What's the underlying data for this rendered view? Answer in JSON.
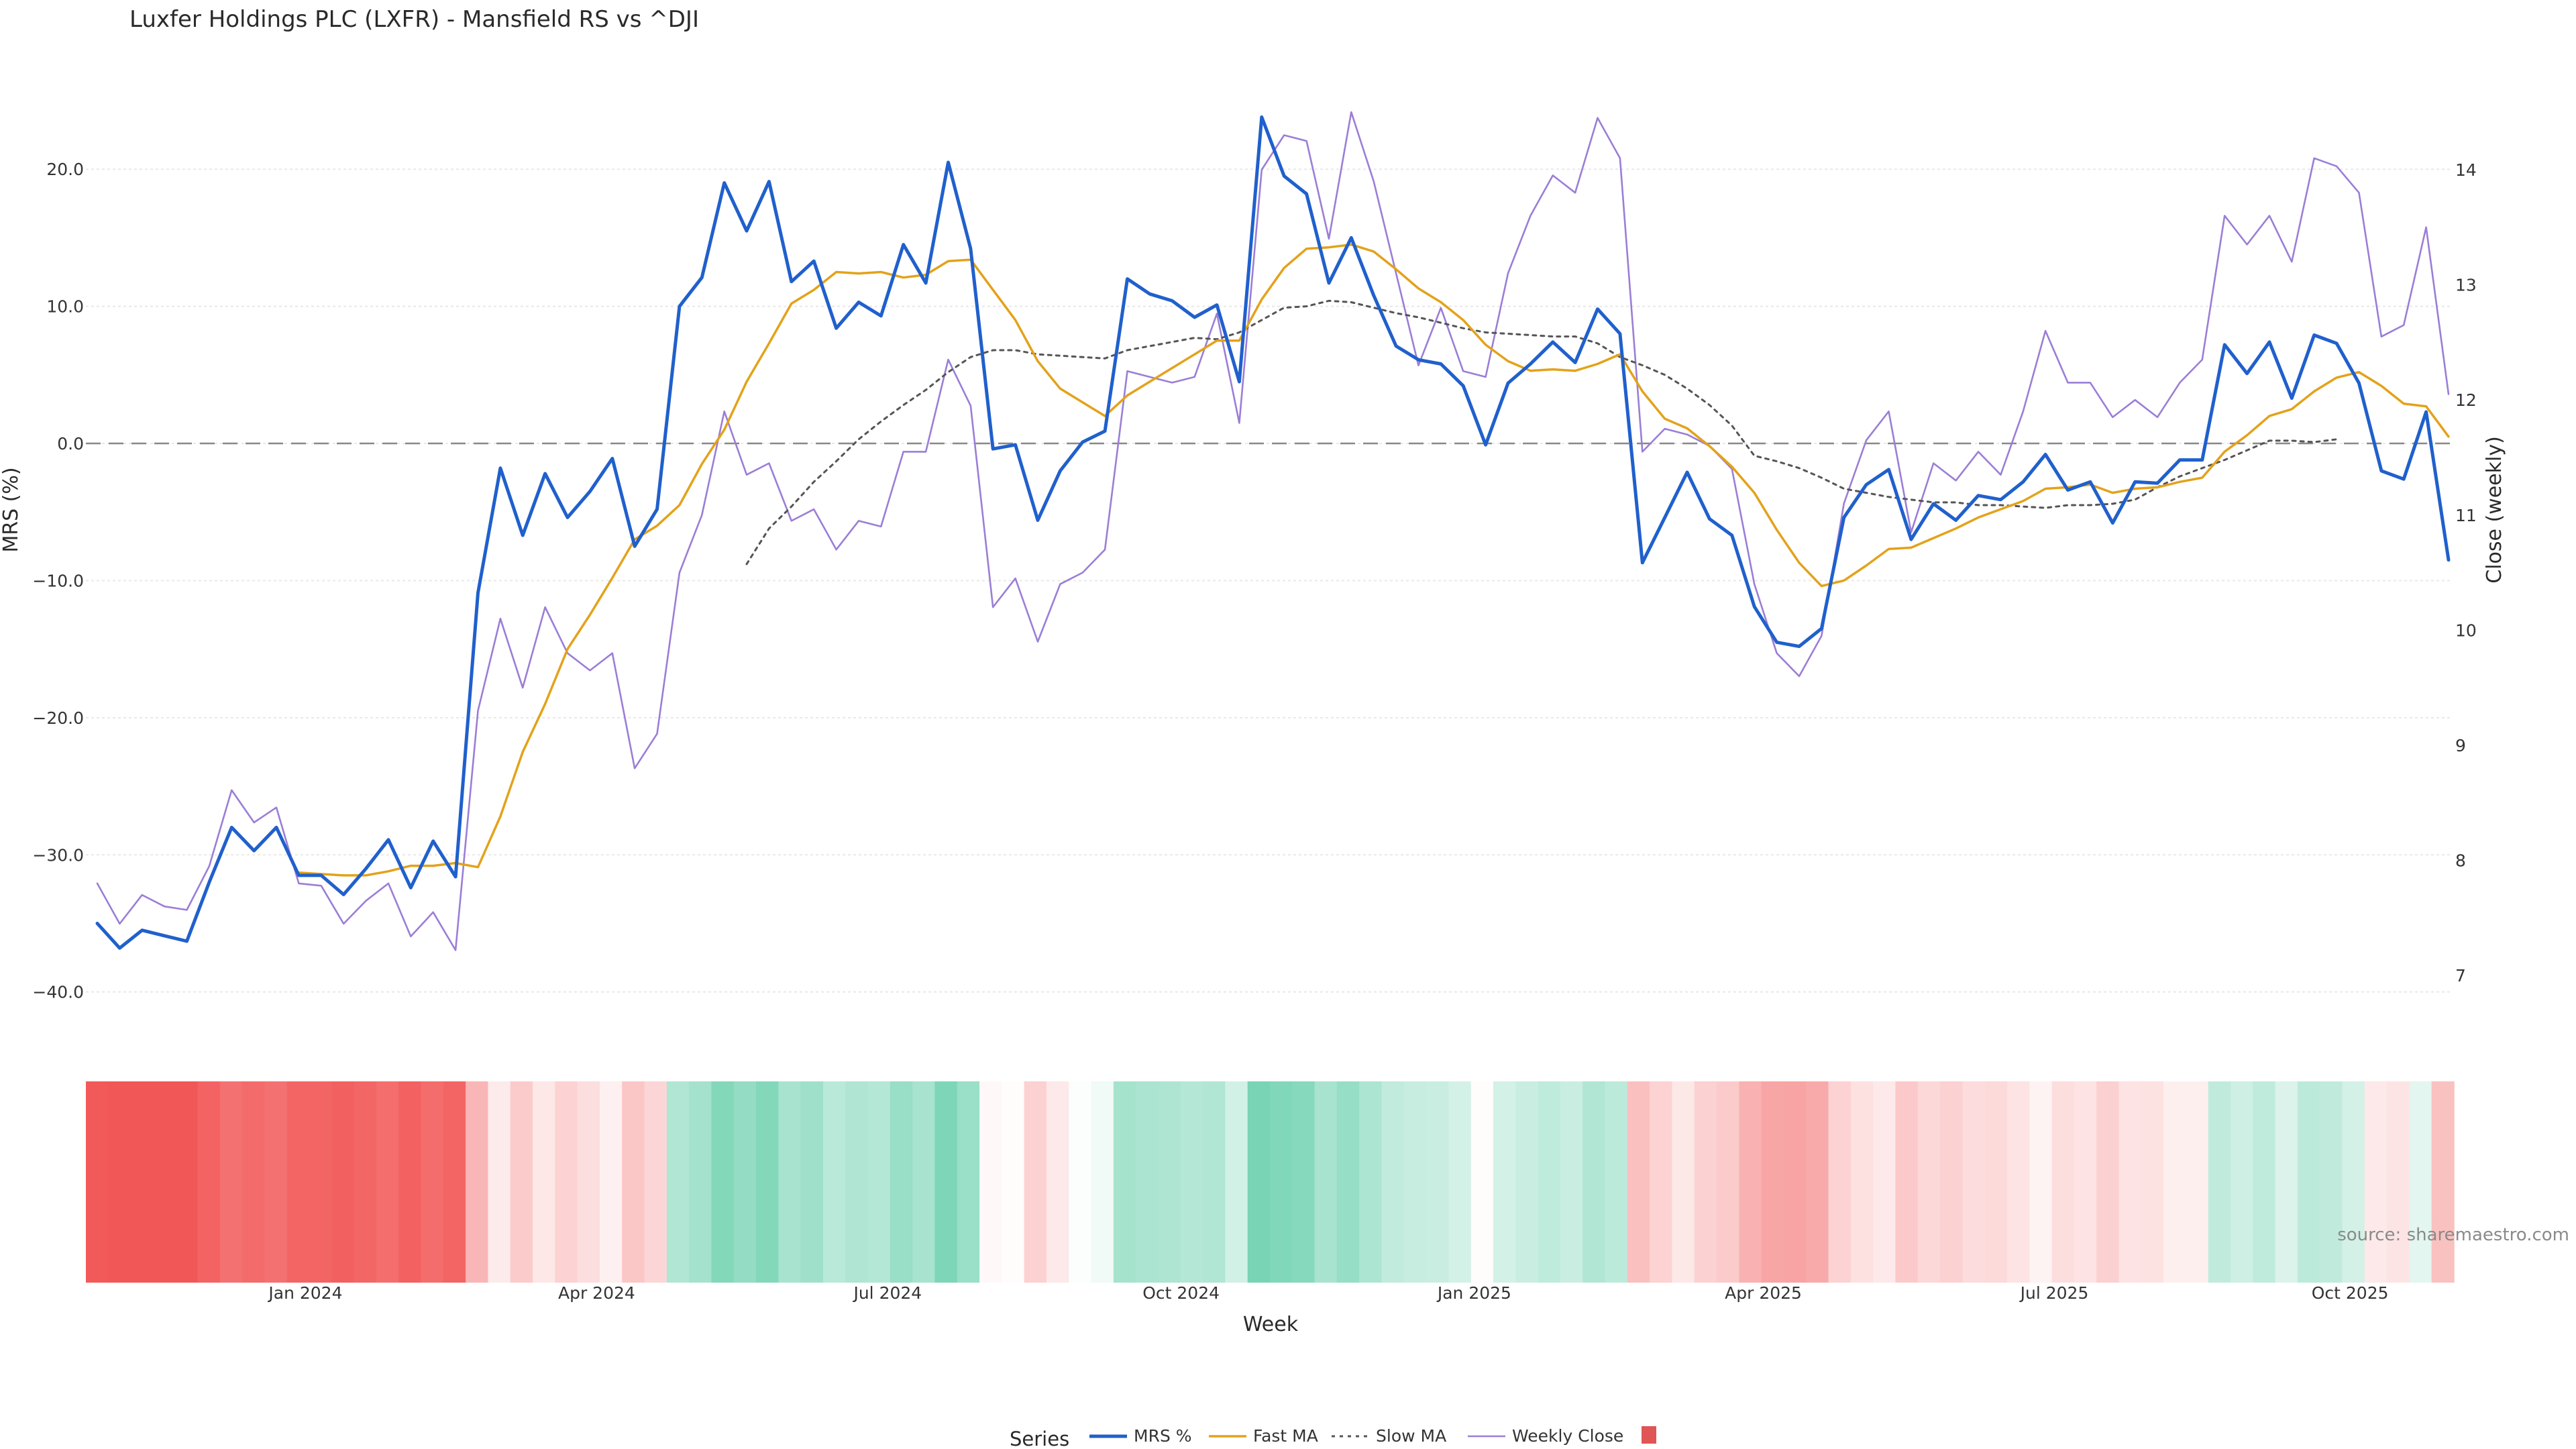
{
  "chart_data": {
    "type": "line",
    "title": "Luxfer Holdings PLC (LXFR) - Mansfield RS vs ^DJI",
    "xlabel": "Week",
    "ylabel_left": "MRS (%)",
    "ylabel_right": "Close (weekly)",
    "source": "source: sharemaestro.com",
    "legend_title": "Series",
    "legend_position": "bottom-center",
    "x_start_week": "2023-10-27",
    "x_tick_labels": [
      "Jan 2024",
      "Apr 2024",
      "Jul 2024",
      "Oct 2024",
      "Jan 2025",
      "Apr 2025",
      "Jul 2025",
      "Oct 2025"
    ],
    "x_tick_weeks": [
      9.3,
      22.3,
      35.3,
      48.4,
      61.5,
      74.4,
      87.4,
      100.6
    ],
    "y_left": {
      "min": -43,
      "max": 25,
      "ticks": [
        20.0,
        10.0,
        0.0,
        -10.0,
        -20.0,
        -30.0,
        -40.0
      ],
      "tick_labels": [
        "20.0",
        "10.0",
        "0.0",
        "−10.0",
        "−20.0",
        "−30.0",
        "−40.0"
      ]
    },
    "y_right": {
      "min": 6.5,
      "max": 14.6,
      "ticks": [
        7,
        8,
        9,
        10,
        11,
        12,
        13,
        14
      ],
      "tick_labels": [
        "7",
        "8",
        "9",
        "10",
        "11",
        "12",
        "13",
        "14"
      ]
    },
    "zero_line": 0,
    "grid": "horizontal",
    "heatmap_colormap": "red-white-green",
    "series": [
      {
        "name": "MRS %",
        "axis": "left",
        "color": "#2060cc",
        "style": "solid-thick",
        "values": [
          -35,
          -36.8,
          -35.5,
          -35.9,
          -36.3,
          -32,
          -28,
          -29.7,
          -28,
          -31.5,
          -31.5,
          -32.9,
          -31,
          -28.9,
          -32.4,
          -29,
          -31.6,
          -10.9,
          -1.8,
          -6.7,
          -2.2,
          -5.4,
          -3.5,
          -1.1,
          -7.5,
          -4.8,
          10,
          12.1,
          19,
          15.5,
          19.1,
          11.8,
          13.3,
          8.4,
          10.3,
          9.3,
          14.5,
          11.7,
          20.5,
          14.2,
          -0.4,
          -0.1,
          -5.6,
          -2,
          0.1,
          0.9,
          12,
          10.9,
          10.4,
          9.2,
          10.1,
          4.5,
          23.8,
          19.5,
          18.2,
          11.7,
          15,
          10.8,
          7.1,
          6.1,
          5.8,
          4.2,
          -0.1,
          4.4,
          5.8,
          7.4,
          5.9,
          9.8,
          8,
          -8.7,
          -5.4,
          -2.1,
          -5.5,
          -6.7,
          -11.9,
          -14.5,
          -14.8,
          -13.5,
          -5.4,
          -3,
          -1.9,
          -7,
          -4.4,
          -5.6,
          -3.8,
          -4.1,
          -2.8,
          -0.8,
          -3.4,
          -2.8,
          -5.8,
          -2.8,
          -2.9,
          -1.2,
          -1.2,
          7.2,
          5.1,
          7.4,
          3.3,
          7.9,
          7.3,
          4.4,
          -2,
          -2.6,
          2.3,
          -8.5
        ]
      },
      {
        "name": "Fast MA",
        "axis": "left",
        "color": "#e3a21a",
        "style": "solid",
        "start_index": 9,
        "values": [
          -31.3,
          -31.4,
          -31.5,
          -31.5,
          -31.2,
          -30.8,
          -30.8,
          -30.6,
          -30.9,
          -27.2,
          -22.5,
          -19,
          -15,
          -12.5,
          -9.8,
          -7,
          -6,
          -4.5,
          -1.5,
          1,
          4.5,
          7.3,
          10.2,
          11.2,
          12.5,
          12.4,
          12.5,
          12.1,
          12.3,
          13.3,
          13.4,
          11.2,
          9,
          6,
          4,
          3,
          2,
          3.5,
          4.5,
          5.5,
          6.5,
          7.5,
          7.5,
          10.5,
          12.8,
          14.2,
          14.3,
          14.5,
          14,
          12.7,
          11.3,
          10.3,
          9,
          7.2,
          6,
          5.3,
          5.4,
          5.3,
          5.8,
          6.5,
          3.8,
          1.8,
          1.1,
          -0.2,
          -1.7,
          -3.6,
          -6.3,
          -8.7,
          -10.4,
          -10,
          -8.9,
          -7.7,
          -7.6,
          -6.9,
          -6.2,
          -5.4,
          -4.8,
          -4.2,
          -3.3,
          -3.2,
          -3,
          -3.6,
          -3.3,
          -3.2,
          -2.8,
          -2.5,
          -0.6,
          0.6,
          2,
          2.5,
          3.8,
          4.8,
          5.2,
          4.2,
          2.9,
          2.7,
          0.5
        ]
      },
      {
        "name": "Slow MA",
        "axis": "left",
        "color": "#555555",
        "style": "dotted",
        "start_index": 29,
        "values": [
          -8.8,
          -6.2,
          -4.6,
          -2.8,
          -1.3,
          0.3,
          1.6,
          2.8,
          3.9,
          5.2,
          6.3,
          6.8,
          6.8,
          6.5,
          6.4,
          6.3,
          6.2,
          6.8,
          7.1,
          7.4,
          7.7,
          7.6,
          8.1,
          9,
          9.9,
          10,
          10.4,
          10.3,
          9.9,
          9.5,
          9.2,
          8.8,
          8.4,
          8.1,
          8,
          7.9,
          7.8,
          7.8,
          7.3,
          6.3,
          5.7,
          5,
          4,
          2.8,
          1.3,
          -0.9,
          -1.3,
          -1.8,
          -2.5,
          -3.3,
          -3.6,
          -3.9,
          -4.1,
          -4.3,
          -4.3,
          -4.5,
          -4.5,
          -4.6,
          -4.7,
          -4.5,
          -4.5,
          -4.4,
          -4.1,
          -3.2,
          -2.4,
          -1.8,
          -1.2,
          -0.5,
          0.2,
          0.2,
          0.1,
          0.3
        ]
      },
      {
        "name": "Weekly Close",
        "axis": "right",
        "color": "#9b7ed6",
        "style": "solid-thin",
        "values": [
          7.8,
          7.45,
          7.7,
          7.6,
          7.57,
          7.95,
          8.61,
          8.33,
          8.46,
          7.8,
          7.78,
          7.45,
          7.65,
          7.8,
          7.34,
          7.55,
          7.22,
          9.3,
          10.1,
          9.5,
          10.2,
          9.8,
          9.65,
          9.8,
          8.8,
          9.1,
          10.5,
          11,
          11.9,
          11.35,
          11.45,
          10.95,
          11.05,
          10.7,
          10.95,
          10.9,
          11.55,
          11.55,
          12.35,
          11.95,
          10.2,
          10.45,
          9.9,
          10.4,
          10.5,
          10.7,
          12.25,
          12.2,
          12.15,
          12.2,
          12.75,
          11.8,
          14,
          14.3,
          14.25,
          13.4,
          14.5,
          13.9,
          13.1,
          12.3,
          12.8,
          12.25,
          12.2,
          13.1,
          13.6,
          13.95,
          13.8,
          14.45,
          14.1,
          11.55,
          11.75,
          11.7,
          11.6,
          11.4,
          10.4,
          9.8,
          9.6,
          9.95,
          11.1,
          11.65,
          11.9,
          10.85,
          11.45,
          11.3,
          11.55,
          11.35,
          11.9,
          12.6,
          12.15,
          12.15,
          11.85,
          12,
          11.85,
          12.15,
          12.35,
          13.6,
          13.35,
          13.6,
          13.2,
          14.1,
          14.03,
          13.8,
          12.55,
          12.65,
          13.5,
          12.05
        ]
      }
    ],
    "heatmap_strip": {
      "description_values_mrs_by_week": "same as MRS %",
      "band_label": ""
    }
  }
}
